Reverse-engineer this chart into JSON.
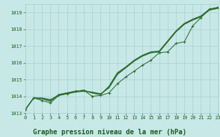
{
  "xlabel": "Graphe pression niveau de la mer (hPa)",
  "bg_color": "#c8e8e8",
  "line_color": "#2d6e2d",
  "grid_color": "#a8cece",
  "xlim": [
    0,
    23
  ],
  "ylim": [
    1013.0,
    1019.5
  ],
  "yticks": [
    1013,
    1014,
    1015,
    1016,
    1017,
    1018,
    1019
  ],
  "xticks": [
    0,
    1,
    2,
    3,
    4,
    5,
    6,
    7,
    8,
    9,
    10,
    11,
    12,
    13,
    14,
    15,
    16,
    17,
    18,
    19,
    20,
    21,
    22,
    23
  ],
  "smooth_lines": [
    [
      1013.2,
      1013.9,
      1013.9,
      1013.8,
      1014.05,
      1014.15,
      1014.25,
      1014.3,
      1014.25,
      1014.15,
      1014.5,
      1015.3,
      1015.7,
      1016.1,
      1016.4,
      1016.6,
      1016.65,
      1017.25,
      1017.85,
      1018.3,
      1018.55,
      1018.75,
      1019.15,
      1019.25
    ],
    [
      1013.2,
      1013.9,
      1013.85,
      1013.75,
      1014.1,
      1014.2,
      1014.3,
      1014.35,
      1014.2,
      1014.1,
      1014.6,
      1015.4,
      1015.75,
      1016.15,
      1016.45,
      1016.65,
      1016.7,
      1017.3,
      1017.9,
      1018.35,
      1018.6,
      1018.8,
      1019.2,
      1019.3
    ],
    [
      1013.2,
      1013.9,
      1013.85,
      1013.7,
      1014.1,
      1014.2,
      1014.3,
      1014.35,
      1014.2,
      1014.1,
      1014.55,
      1015.35,
      1015.7,
      1016.1,
      1016.4,
      1016.6,
      1016.65,
      1017.25,
      1017.85,
      1018.3,
      1018.55,
      1018.75,
      1019.15,
      1019.25
    ]
  ],
  "marker_line": [
    1013.2,
    1013.9,
    1013.75,
    1013.6,
    1014.05,
    1014.15,
    1014.3,
    1014.35,
    1014.0,
    1014.05,
    1014.2,
    1014.75,
    1015.15,
    1015.5,
    1015.85,
    1016.15,
    1016.6,
    1016.65,
    1017.15,
    1017.25,
    1018.2,
    1018.7,
    1019.2,
    1019.3
  ],
  "font_color": "#1a5c1a",
  "label_fontsize": 7,
  "tick_fontsize": 5
}
